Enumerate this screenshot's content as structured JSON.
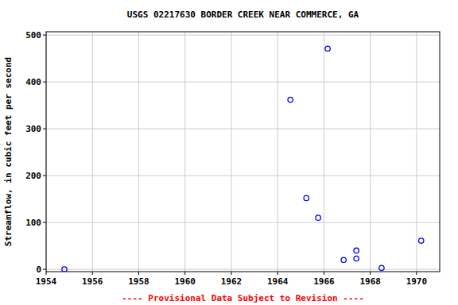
{
  "chart_data": {
    "type": "scatter",
    "title": "USGS 02217630 BORDER CREEK NEAR COMMERCE, GA",
    "y_label": "Streamflow, in cubic feet per second",
    "annotations": [
      "---- Provisional Data Subject to Revision ----"
    ],
    "x": [
      1954.79,
      1964.55,
      1965.24,
      1965.75,
      1966.16,
      1966.85,
      1967.4,
      1967.4,
      1968.49,
      1970.2
    ],
    "values": [
      0,
      362,
      152,
      110,
      471,
      20,
      23,
      40,
      3,
      61
    ],
    "color": "#0000ff",
    "marker": "circle",
    "xlim": [
      1954,
      1971
    ],
    "ylim": [
      -5,
      507
    ],
    "xticks": [
      1954,
      1956,
      1958,
      1960,
      1962,
      1964,
      1966,
      1968,
      1970
    ],
    "yticks": [
      0,
      100,
      200,
      300,
      400,
      500
    ],
    "grid": true
  }
}
